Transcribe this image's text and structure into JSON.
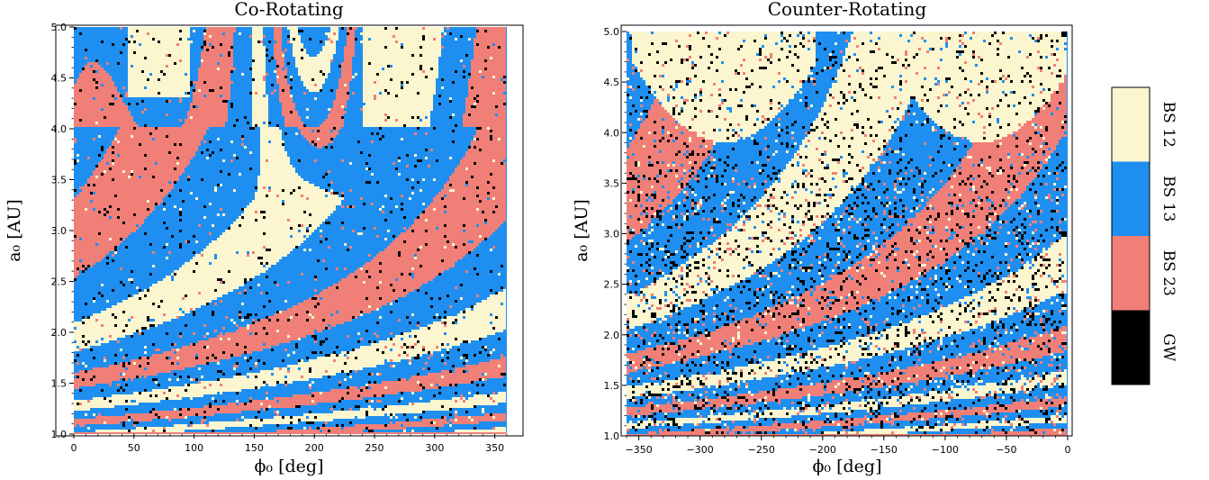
{
  "colors": {
    "bs12": "#fbf6cf",
    "bs13": "#1e8ff0",
    "bs23": "#f07f78",
    "gw": "#000000"
  },
  "colorbar": {
    "entries": [
      {
        "label": "BS 12",
        "color": "#fbf6cf"
      },
      {
        "label": "BS 13",
        "color": "#1e8ff0"
      },
      {
        "label": "BS 23",
        "color": "#f07f78"
      },
      {
        "label": "GW",
        "color": "#000000"
      }
    ]
  },
  "chart_data": [
    {
      "type": "heatmap",
      "title": "Co-Rotating",
      "xlabel": "ϕ₀ [deg]",
      "ylabel": "a₀ [AU]",
      "xlim": [
        0,
        360
      ],
      "ylim": [
        1.0,
        5.0
      ],
      "xticks": [
        0,
        50,
        100,
        150,
        200,
        250,
        300,
        350
      ],
      "xtick_labels": [
        "0",
        "50",
        "100",
        "150",
        "200",
        "250",
        "300",
        "350"
      ],
      "yticks": [
        1.0,
        1.5,
        2.0,
        2.5,
        3.0,
        3.5,
        4.0,
        4.5,
        5.0
      ],
      "ytick_labels": [
        "1.0",
        "1.5",
        "2.0",
        "2.5",
        "3.0",
        "3.5",
        "4.0",
        "4.5",
        "5.0"
      ],
      "categories": [
        "BS 12",
        "BS 13",
        "BS 23",
        "GW"
      ]
    },
    {
      "type": "heatmap",
      "title": "Counter-Rotating",
      "xlabel": "ϕ₀ [deg]",
      "ylabel": "a₀ [AU]",
      "xlim": [
        -360,
        0
      ],
      "ylim": [
        1.0,
        5.0
      ],
      "xticks": [
        -350,
        -300,
        -250,
        -200,
        -150,
        -100,
        -50,
        0
      ],
      "xtick_labels": [
        "−350",
        "−300",
        "−250",
        "−200",
        "−150",
        "−100",
        "−50",
        "0"
      ],
      "yticks": [
        1.0,
        1.5,
        2.0,
        2.5,
        3.0,
        3.5,
        4.0,
        4.5,
        5.0
      ],
      "ytick_labels": [
        "1.0",
        "1.5",
        "2.0",
        "2.5",
        "3.0",
        "3.5",
        "4.0",
        "4.5",
        "5.0"
      ],
      "categories": [
        "BS 12",
        "BS 13",
        "BS 23",
        "GW"
      ]
    }
  ]
}
